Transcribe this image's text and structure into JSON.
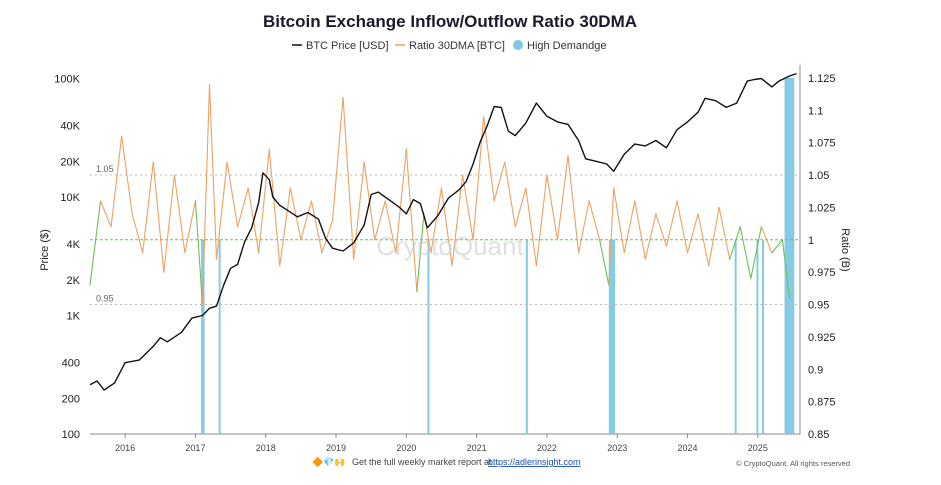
{
  "chart_data": {
    "type": "line",
    "title": "Bitcoin Exchange Inflow/Outflow Ratio 30DMA",
    "legend": [
      {
        "label": "BTC Price [USD]",
        "color": "#111111",
        "kind": "line"
      },
      {
        "label": "Ratio 30DMA [BTC]",
        "color": "#f0a060",
        "kind": "line"
      },
      {
        "label": "High Demandge",
        "color": "#7ec8e3",
        "kind": "dot"
      }
    ],
    "ylabel_left": "Price ($)",
    "ylabel_right": "Ratio (B)",
    "left_axis": {
      "scale": "log",
      "range": [
        100,
        130000
      ],
      "ticks": [
        100,
        200,
        400,
        1000,
        2000,
        4000,
        10000,
        20000,
        40000,
        100000
      ],
      "tick_labels": [
        "100",
        "200",
        "400",
        "1K",
        "2K",
        "4K",
        "10K",
        "20K",
        "40K",
        "100K"
      ]
    },
    "right_axis": {
      "scale": "linear",
      "range": [
        0.85,
        1.135
      ],
      "ticks": [
        0.85,
        0.875,
        0.9,
        0.925,
        0.95,
        0.975,
        1,
        1.025,
        1.05,
        1.075,
        1.1,
        1.125
      ],
      "tick_labels": [
        "0.85",
        "0.875",
        "0.9",
        "0.925",
        "0.95",
        "0.975",
        "1",
        "1.025",
        "1.05",
        "1.075",
        "1.1",
        "1.125"
      ]
    },
    "x_axis": {
      "range": [
        2015.5,
        2025.6
      ],
      "ticks": [
        2016,
        2017,
        2018,
        2019,
        2020,
        2021,
        2022,
        2023,
        2024,
        2025
      ],
      "tick_labels": [
        "2016",
        "2017",
        "2018",
        "2019",
        "2020",
        "2021",
        "2022",
        "2023",
        "2024",
        "2025"
      ]
    },
    "reference_lines": [
      {
        "value": 1.05,
        "label": "1.05",
        "color": "#bbbbbb"
      },
      {
        "value": 1.0,
        "label": "",
        "color": "#6cbf5a"
      },
      {
        "value": 0.95,
        "label": "0.95",
        "color": "#bbbbbb"
      }
    ],
    "series": [
      {
        "name": "BTC Price [USD]",
        "axis": "left",
        "x": [
          2015.5,
          2015.6,
          2015.7,
          2015.85,
          2016.0,
          2016.2,
          2016.4,
          2016.5,
          2016.6,
          2016.8,
          2016.95,
          2017.1,
          2017.2,
          2017.3,
          2017.4,
          2017.5,
          2017.6,
          2017.7,
          2017.8,
          2017.9,
          2017.96,
          2018.05,
          2018.1,
          2018.2,
          2018.3,
          2018.45,
          2018.6,
          2018.75,
          2018.85,
          2018.95,
          2019.1,
          2019.25,
          2019.4,
          2019.5,
          2019.6,
          2019.75,
          2019.9,
          2020.0,
          2020.1,
          2020.2,
          2020.3,
          2020.45,
          2020.6,
          2020.75,
          2020.85,
          2020.95,
          2021.05,
          2021.15,
          2021.25,
          2021.35,
          2021.45,
          2021.55,
          2021.7,
          2021.85,
          2022.0,
          2022.15,
          2022.3,
          2022.45,
          2022.55,
          2022.7,
          2022.85,
          2022.95,
          2023.1,
          2023.25,
          2023.4,
          2023.55,
          2023.7,
          2023.85,
          2024.0,
          2024.15,
          2024.25,
          2024.4,
          2024.55,
          2024.7,
          2024.85,
          2024.95,
          2025.05,
          2025.2,
          2025.3,
          2025.45,
          2025.55
        ],
        "values": [
          260,
          280,
          235,
          270,
          400,
          420,
          550,
          650,
          600,
          720,
          950,
          1000,
          1150,
          1200,
          1800,
          2500,
          2700,
          4200,
          5500,
          9000,
          16000,
          14000,
          10000,
          8500,
          7800,
          6800,
          7400,
          6500,
          4500,
          3700,
          3500,
          4100,
          5800,
          10500,
          11000,
          9500,
          8200,
          7200,
          9500,
          8800,
          5500,
          7000,
          9800,
          11500,
          13500,
          19000,
          29000,
          40000,
          58000,
          57000,
          36000,
          33000,
          42000,
          62000,
          48000,
          43000,
          41000,
          30000,
          21000,
          20000,
          19000,
          16500,
          23000,
          28000,
          27000,
          30000,
          26000,
          37000,
          43000,
          52000,
          68000,
          65000,
          57000,
          62000,
          95000,
          98000,
          100000,
          85000,
          95000,
          105000,
          110000
        ]
      },
      {
        "name": "Ratio 30DMA [BTC]",
        "axis": "right",
        "x": [
          2015.5,
          2015.65,
          2015.8,
          2015.95,
          2016.1,
          2016.25,
          2016.4,
          2016.55,
          2016.7,
          2016.85,
          2017.0,
          2017.1,
          2017.2,
          2017.3,
          2017.45,
          2017.6,
          2017.75,
          2017.9,
          2018.05,
          2018.2,
          2018.35,
          2018.5,
          2018.65,
          2018.8,
          2018.95,
          2019.1,
          2019.25,
          2019.4,
          2019.55,
          2019.7,
          2019.85,
          2020.0,
          2020.15,
          2020.25,
          2020.35,
          2020.5,
          2020.65,
          2020.8,
          2020.95,
          2021.1,
          2021.25,
          2021.4,
          2021.55,
          2021.7,
          2021.85,
          2022.0,
          2022.15,
          2022.3,
          2022.45,
          2022.6,
          2022.75,
          2022.88,
          2022.95,
          2023.1,
          2023.25,
          2023.4,
          2023.55,
          2023.7,
          2023.85,
          2024.0,
          2024.15,
          2024.3,
          2024.45,
          2024.6,
          2024.75,
          2024.9,
          2025.05,
          2025.2,
          2025.35,
          2025.45
        ],
        "values": [
          0.965,
          1.03,
          1.01,
          1.08,
          1.02,
          0.99,
          1.06,
          0.975,
          1.05,
          0.99,
          1.03,
          0.95,
          1.12,
          0.985,
          1.06,
          1.01,
          1.04,
          0.99,
          1.07,
          0.98,
          1.04,
          1.0,
          1.03,
          0.99,
          1.015,
          1.11,
          0.985,
          1.06,
          1.0,
          1.03,
          0.99,
          1.07,
          0.96,
          1.02,
          0.99,
          1.04,
          0.98,
          1.05,
          1.0,
          1.095,
          1.03,
          1.06,
          1.01,
          1.04,
          0.98,
          1.05,
          1.0,
          1.065,
          0.99,
          1.03,
          1.0,
          0.965,
          1.04,
          0.99,
          1.03,
          0.985,
          1.02,
          0.995,
          1.03,
          0.99,
          1.02,
          0.98,
          1.025,
          0.985,
          1.01,
          0.97,
          1.01,
          0.99,
          1.0,
          0.955
        ]
      }
    ],
    "high_demand_periods": [
      {
        "start": 2017.08,
        "end": 2017.13
      },
      {
        "start": 2017.33,
        "end": 2017.35
      },
      {
        "start": 2020.3,
        "end": 2020.32
      },
      {
        "start": 2021.7,
        "end": 2021.72
      },
      {
        "start": 2022.88,
        "end": 2022.97
      },
      {
        "start": 2024.67,
        "end": 2024.69
      },
      {
        "start": 2024.98,
        "end": 2025.0
      },
      {
        "start": 2025.06,
        "end": 2025.08
      },
      {
        "start": 2025.38,
        "end": 2025.52
      }
    ],
    "watermark": "CryptoQuant"
  },
  "footer": {
    "icons": "🔶💎🙌",
    "text": "Get the full weekly market report at ",
    "link": "https://adlerinsight.com",
    "copyright": "© CryptoQuant. All rights reserved"
  },
  "colors": {
    "price": "#111111",
    "ratio_above": "#f0a060",
    "ratio_below": "#6cbf5a",
    "high_demand": "#7ec8e3"
  }
}
